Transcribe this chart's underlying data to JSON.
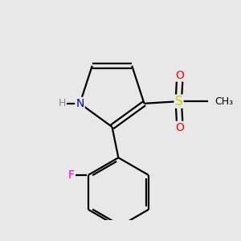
{
  "background_color": "#e8e8e8",
  "bond_color": "#000000",
  "line_width": 1.6,
  "dbo": 0.055,
  "atom_colors": {
    "N": "#0000cc",
    "O": "#ff0000",
    "S": "#cccc00",
    "F": "#ff00cc",
    "H": "#888888",
    "C": "#000000"
  },
  "fig_width": 3.0,
  "fig_height": 3.0
}
